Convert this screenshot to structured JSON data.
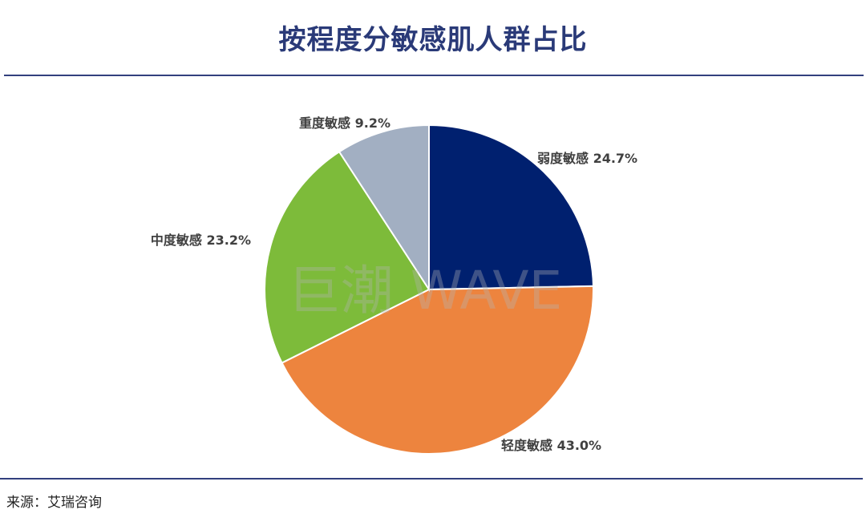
{
  "title": "按程度分敏感肌人群占比",
  "source": "来源：艾瑞咨询",
  "watermark": "巨潮 WAVE",
  "chart_data": {
    "type": "pie",
    "title": "按程度分敏感肌人群占比",
    "start": "12 o'clock",
    "direction": "clockwise",
    "slices": [
      {
        "label": "弱度敏感",
        "value": 24.7,
        "display": "弱度敏感 24.7%",
        "color": "#00206f"
      },
      {
        "label": "轻度敏感",
        "value": 43.0,
        "display": "轻度敏感 43.0%",
        "color": "#ed843e"
      },
      {
        "label": "中度敏感",
        "value": 23.2,
        "display": "中度敏感 23.2%",
        "color": "#7dbb3a"
      },
      {
        "label": "重度敏感",
        "value": 9.2,
        "display": "重度敏感 9.2%",
        "color": "#a2afc2"
      }
    ]
  }
}
